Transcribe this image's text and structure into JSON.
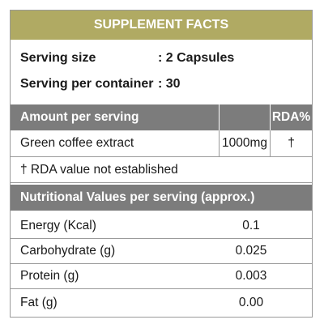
{
  "title": "SUPPLEMENT FACTS",
  "serving": {
    "size_label": "Serving size",
    "size_value": ": 2 Capsules",
    "per_container_label": "Serving per container",
    "per_container_value": ": 30"
  },
  "amount_table": {
    "header_label": "Amount per serving",
    "header_rda": "RDA%",
    "rows": [
      {
        "name": "Green coffee extract",
        "amount": "1000mg",
        "rda": "†"
      }
    ],
    "footnote": "† RDA value not established"
  },
  "nutrition_table": {
    "header_label": "Nutritional Values per serving (approx.)",
    "rows": [
      {
        "name": "Energy (Kcal)",
        "value": "0.1"
      },
      {
        "name": "Carbohydrate (g)",
        "value": "0.025"
      },
      {
        "name": "Protein (g)",
        "value": "0.003"
      },
      {
        "name": "Fat (g)",
        "value": "0.00"
      }
    ]
  },
  "colors": {
    "title_bar": "#b0aa63",
    "header_bar": "#7c7c7c",
    "border": "#9a9a9a"
  }
}
